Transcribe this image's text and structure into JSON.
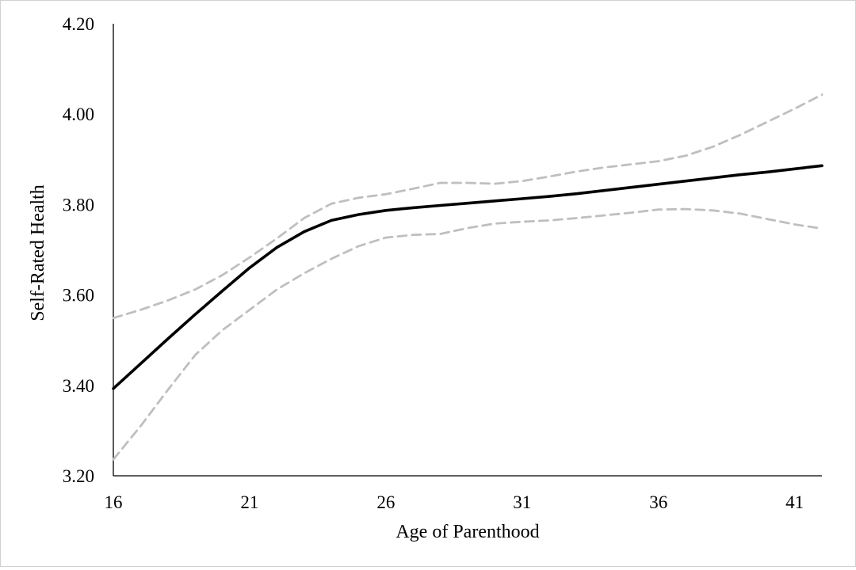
{
  "chart_data": {
    "type": "line",
    "title": "",
    "xlabel": "Age of Parenthood",
    "ylabel": "Self-Rated Health",
    "xlim": [
      16,
      42
    ],
    "ylim": [
      3.2,
      4.2
    ],
    "x_ticks": [
      "16",
      "21",
      "26",
      "31",
      "36",
      "41"
    ],
    "y_ticks": [
      "3.20",
      "3.40",
      "3.60",
      "3.80",
      "4.00",
      "4.20"
    ],
    "grid": false,
    "legend": "none",
    "x": [
      16,
      17,
      18,
      19,
      20,
      21,
      22,
      23,
      24,
      25,
      26,
      27,
      28,
      29,
      30,
      31,
      32,
      33,
      34,
      35,
      36,
      37,
      38,
      39,
      40,
      41,
      42
    ],
    "series": [
      {
        "role": "estimate",
        "style": "solid",
        "color": "#000000",
        "values": [
          3.393,
          3.448,
          3.503,
          3.557,
          3.609,
          3.66,
          3.705,
          3.74,
          3.765,
          3.778,
          3.787,
          3.793,
          3.798,
          3.803,
          3.808,
          3.813,
          3.818,
          3.824,
          3.831,
          3.838,
          3.845,
          3.852,
          3.859,
          3.866,
          3.872,
          3.879,
          3.886
        ]
      },
      {
        "role": "upper-bound",
        "style": "dashed",
        "color": "#bfbfbf",
        "values": [
          3.549,
          3.567,
          3.588,
          3.612,
          3.644,
          3.683,
          3.725,
          3.77,
          3.802,
          3.815,
          3.823,
          3.835,
          3.848,
          3.848,
          3.846,
          3.852,
          3.862,
          3.873,
          3.882,
          3.889,
          3.896,
          3.908,
          3.928,
          3.954,
          3.983,
          4.012,
          4.043
        ]
      },
      {
        "role": "lower-bound",
        "style": "dashed",
        "color": "#bfbfbf",
        "values": [
          3.236,
          3.31,
          3.39,
          3.467,
          3.522,
          3.567,
          3.612,
          3.648,
          3.68,
          3.708,
          3.727,
          3.733,
          3.735,
          3.748,
          3.758,
          3.762,
          3.765,
          3.77,
          3.776,
          3.782,
          3.789,
          3.79,
          3.787,
          3.78,
          3.768,
          3.756,
          3.747
        ]
      }
    ]
  }
}
